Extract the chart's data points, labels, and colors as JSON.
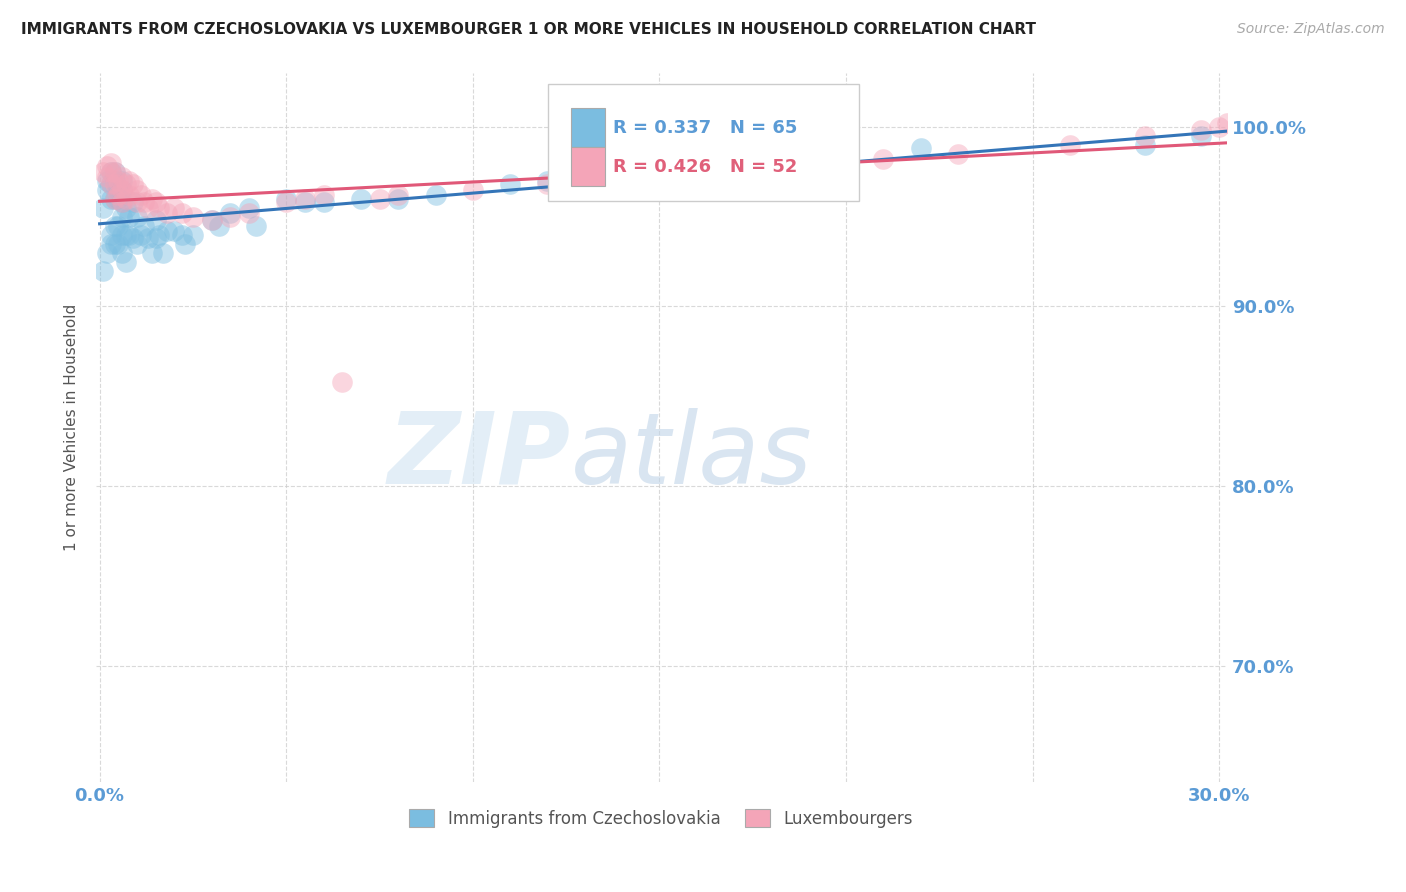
{
  "title": "IMMIGRANTS FROM CZECHOSLOVAKIA VS LUXEMBOURGER 1 OR MORE VEHICLES IN HOUSEHOLD CORRELATION CHART",
  "source": "Source: ZipAtlas.com",
  "ylabel": "1 or more Vehicles in Household",
  "xlim": [
    -0.001,
    0.302
  ],
  "ylim": [
    0.635,
    1.03
  ],
  "yticks": [
    0.7,
    0.8,
    0.9,
    1.0
  ],
  "ytick_labels": [
    "70.0%",
    "80.0%",
    "90.0%",
    "100.0%"
  ],
  "xticks": [
    0.0,
    0.05,
    0.1,
    0.15,
    0.2,
    0.25,
    0.3
  ],
  "xtick_labels": [
    "0.0%",
    "",
    "",
    "",
    "",
    "",
    "30.0%"
  ],
  "legend_label1": "Immigrants from Czechoslovakia",
  "legend_label2": "Luxembourgers",
  "R1": 0.337,
  "N1": 65,
  "R2": 0.426,
  "N2": 52,
  "color1": "#7bbde0",
  "color2": "#f4a5b8",
  "trendline_color1": "#3475b8",
  "trendline_color2": "#e05878",
  "blue_x": [
    0.001,
    0.001,
    0.002,
    0.002,
    0.002,
    0.003,
    0.003,
    0.003,
    0.003,
    0.003,
    0.004,
    0.004,
    0.004,
    0.004,
    0.004,
    0.005,
    0.005,
    0.005,
    0.005,
    0.006,
    0.006,
    0.006,
    0.006,
    0.006,
    0.006,
    0.007,
    0.007,
    0.007,
    0.008,
    0.008,
    0.009,
    0.009,
    0.01,
    0.01,
    0.011,
    0.012,
    0.013,
    0.014,
    0.015,
    0.015,
    0.016,
    0.017,
    0.018,
    0.02,
    0.022,
    0.023,
    0.025,
    0.03,
    0.032,
    0.035,
    0.04,
    0.042,
    0.05,
    0.055,
    0.06,
    0.07,
    0.08,
    0.09,
    0.11,
    0.12,
    0.15,
    0.2,
    0.22,
    0.28,
    0.295
  ],
  "blue_y": [
    0.955,
    0.92,
    0.97,
    0.965,
    0.93,
    0.975,
    0.968,
    0.96,
    0.94,
    0.935,
    0.975,
    0.97,
    0.96,
    0.945,
    0.935,
    0.965,
    0.96,
    0.945,
    0.935,
    0.97,
    0.965,
    0.958,
    0.95,
    0.94,
    0.93,
    0.955,
    0.94,
    0.925,
    0.95,
    0.94,
    0.958,
    0.938,
    0.95,
    0.935,
    0.94,
    0.945,
    0.938,
    0.93,
    0.948,
    0.938,
    0.94,
    0.93,
    0.942,
    0.942,
    0.94,
    0.935,
    0.94,
    0.948,
    0.945,
    0.952,
    0.955,
    0.945,
    0.96,
    0.958,
    0.958,
    0.96,
    0.96,
    0.962,
    0.968,
    0.97,
    0.975,
    0.985,
    0.988,
    0.99,
    0.995
  ],
  "pink_x": [
    0.001,
    0.002,
    0.002,
    0.003,
    0.003,
    0.003,
    0.004,
    0.004,
    0.004,
    0.005,
    0.005,
    0.006,
    0.006,
    0.006,
    0.007,
    0.007,
    0.008,
    0.008,
    0.009,
    0.01,
    0.01,
    0.011,
    0.012,
    0.013,
    0.014,
    0.015,
    0.016,
    0.018,
    0.02,
    0.022,
    0.025,
    0.03,
    0.035,
    0.04,
    0.05,
    0.055,
    0.06,
    0.065,
    0.075,
    0.08,
    0.1,
    0.12,
    0.14,
    0.16,
    0.18,
    0.21,
    0.23,
    0.26,
    0.28,
    0.295,
    0.3,
    0.302
  ],
  "pink_y": [
    0.975,
    0.978,
    0.972,
    0.98,
    0.975,
    0.968,
    0.975,
    0.968,
    0.96,
    0.97,
    0.962,
    0.972,
    0.965,
    0.958,
    0.968,
    0.96,
    0.97,
    0.962,
    0.968,
    0.965,
    0.958,
    0.962,
    0.958,
    0.955,
    0.96,
    0.958,
    0.955,
    0.952,
    0.955,
    0.952,
    0.95,
    0.948,
    0.95,
    0.952,
    0.958,
    0.96,
    0.962,
    0.858,
    0.96,
    0.962,
    0.965,
    0.968,
    0.97,
    0.975,
    0.978,
    0.982,
    0.985,
    0.99,
    0.995,
    0.998,
    1.0,
    1.002
  ],
  "watermark_zip": "ZIP",
  "watermark_atlas": "atlas",
  "background_color": "#ffffff",
  "grid_color": "#d0d0d0",
  "axis_tick_color": "#5b9bd5",
  "legend_text_color": "#333333"
}
